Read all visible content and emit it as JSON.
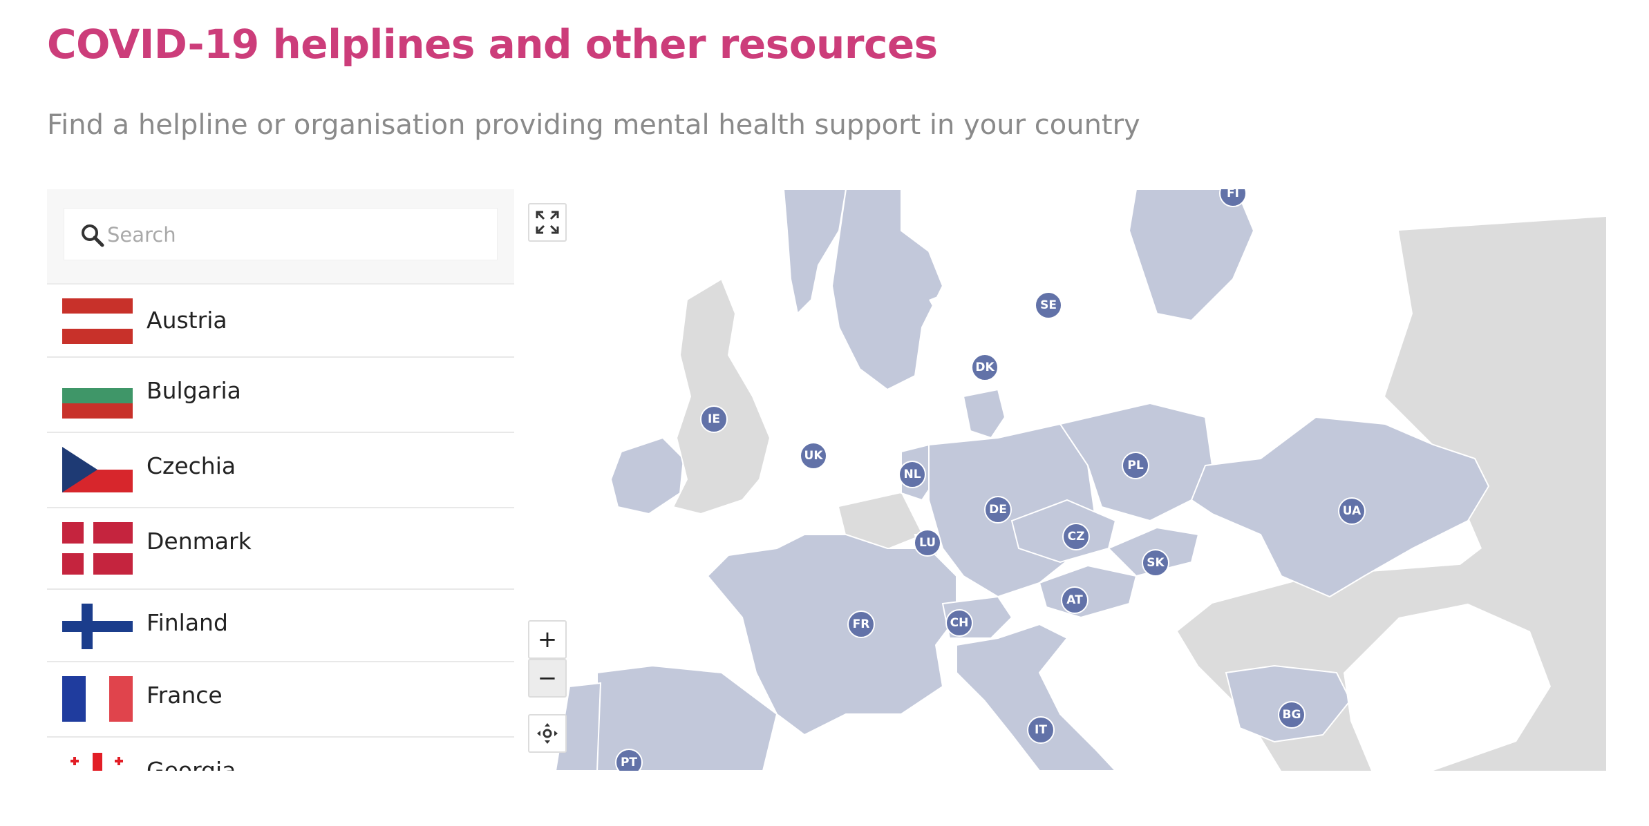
{
  "header": {
    "title": "COVID-19 helplines and other resources",
    "subtitle": "Find a helpline or organisation providing mental health support in your country"
  },
  "search": {
    "placeholder": "Search"
  },
  "countries": [
    {
      "name": "Austria"
    },
    {
      "name": "Bulgaria"
    },
    {
      "name": "Czechia"
    },
    {
      "name": "Denmark"
    },
    {
      "name": "Finland"
    },
    {
      "name": "France"
    },
    {
      "name": "Georgia"
    }
  ],
  "map_controls": {
    "fullscreen_icon": "expand-icon",
    "zoom_in": "+",
    "zoom_out": "−",
    "reset_icon": "recenter-icon"
  },
  "markers": [
    {
      "code": "FI"
    },
    {
      "code": "SE"
    },
    {
      "code": "DK"
    },
    {
      "code": "IE"
    },
    {
      "code": "UK"
    },
    {
      "code": "NL"
    },
    {
      "code": "PL"
    },
    {
      "code": "DE"
    },
    {
      "code": "UA"
    },
    {
      "code": "CZ"
    },
    {
      "code": "LU"
    },
    {
      "code": "SK"
    },
    {
      "code": "AT"
    },
    {
      "code": "FR"
    },
    {
      "code": "CH"
    },
    {
      "code": "IT"
    },
    {
      "code": "BG"
    },
    {
      "code": "PT"
    }
  ],
  "colors": {
    "title": "#cc3d7a",
    "subtitle": "#8a8a8a",
    "highlighted_country": "#c2c8da",
    "other_country": "#dcdcdc",
    "marker": "#6272a8"
  }
}
